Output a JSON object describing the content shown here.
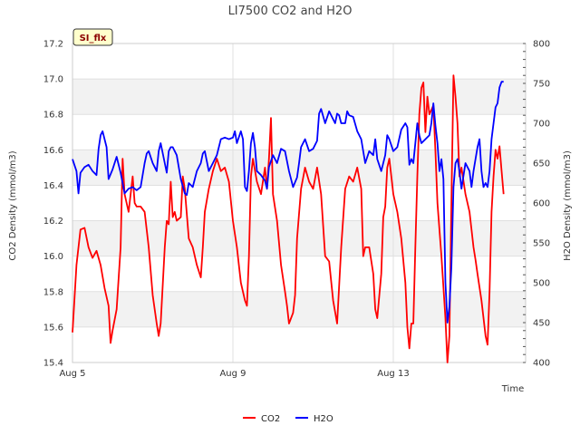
{
  "badge": "SI_flx",
  "chart_data": {
    "type": "line",
    "title": "LI7500 CO2 and H2O",
    "xlabel": "Time",
    "ylabel_left": "CO2 Density (mmol/m3)",
    "ylabel_right": "H2O Density (mmol/m3)",
    "x_range_days": [
      5,
      16.3
    ],
    "x_ticks": [
      {
        "day": 5,
        "label": "Aug 5"
      },
      {
        "day": 9,
        "label": "Aug 9"
      },
      {
        "day": 13,
        "label": "Aug 13"
      }
    ],
    "ylim_left": [
      15.4,
      17.2
    ],
    "yticks_left": [
      "15.4",
      "15.6",
      "15.8",
      "16.0",
      "16.2",
      "16.4",
      "16.6",
      "16.8",
      "17.0",
      "17.2"
    ],
    "ylim_right": [
      400,
      800
    ],
    "yticks_right": [
      "400",
      "450",
      "500",
      "550",
      "600",
      "650",
      "700",
      "750",
      "800"
    ],
    "band_color": "#f2f2f2",
    "series": [
      {
        "name": "CO2",
        "axis": "left",
        "color": "#ff0000",
        "points": [
          [
            5.0,
            15.57
          ],
          [
            5.1,
            15.95
          ],
          [
            5.2,
            16.15
          ],
          [
            5.3,
            16.16
          ],
          [
            5.4,
            16.05
          ],
          [
            5.5,
            15.99
          ],
          [
            5.6,
            16.03
          ],
          [
            5.7,
            15.95
          ],
          [
            5.8,
            15.82
          ],
          [
            5.9,
            15.72
          ],
          [
            5.95,
            15.51
          ],
          [
            6.0,
            15.58
          ],
          [
            6.1,
            15.7
          ],
          [
            6.2,
            16.05
          ],
          [
            6.25,
            16.55
          ],
          [
            6.3,
            16.35
          ],
          [
            6.4,
            16.25
          ],
          [
            6.5,
            16.45
          ],
          [
            6.55,
            16.3
          ],
          [
            6.6,
            16.28
          ],
          [
            6.7,
            16.28
          ],
          [
            6.8,
            16.25
          ],
          [
            6.9,
            16.05
          ],
          [
            7.0,
            15.78
          ],
          [
            7.1,
            15.62
          ],
          [
            7.15,
            15.55
          ],
          [
            7.2,
            15.62
          ],
          [
            7.3,
            16.05
          ],
          [
            7.35,
            16.2
          ],
          [
            7.4,
            16.18
          ],
          [
            7.45,
            16.42
          ],
          [
            7.5,
            16.22
          ],
          [
            7.55,
            16.25
          ],
          [
            7.6,
            16.2
          ],
          [
            7.7,
            16.22
          ],
          [
            7.75,
            16.45
          ],
          [
            7.8,
            16.38
          ],
          [
            7.9,
            16.1
          ],
          [
            8.0,
            16.05
          ],
          [
            8.1,
            15.95
          ],
          [
            8.2,
            15.88
          ],
          [
            8.25,
            16.05
          ],
          [
            8.3,
            16.25
          ],
          [
            8.4,
            16.38
          ],
          [
            8.5,
            16.48
          ],
          [
            8.6,
            16.55
          ],
          [
            8.7,
            16.48
          ],
          [
            8.8,
            16.5
          ],
          [
            8.9,
            16.42
          ],
          [
            9.0,
            16.2
          ],
          [
            9.1,
            16.05
          ],
          [
            9.2,
            15.85
          ],
          [
            9.3,
            15.75
          ],
          [
            9.35,
            15.72
          ],
          [
            9.4,
            16.0
          ],
          [
            9.45,
            16.45
          ],
          [
            9.5,
            16.55
          ],
          [
            9.6,
            16.42
          ],
          [
            9.7,
            16.35
          ],
          [
            9.8,
            16.5
          ],
          [
            9.85,
            16.38
          ],
          [
            9.9,
            16.55
          ],
          [
            9.95,
            16.78
          ],
          [
            10.0,
            16.35
          ],
          [
            10.1,
            16.2
          ],
          [
            10.2,
            15.95
          ],
          [
            10.3,
            15.8
          ],
          [
            10.35,
            15.72
          ],
          [
            10.4,
            15.62
          ],
          [
            10.5,
            15.68
          ],
          [
            10.55,
            15.78
          ],
          [
            10.6,
            16.1
          ],
          [
            10.7,
            16.38
          ],
          [
            10.8,
            16.5
          ],
          [
            10.9,
            16.42
          ],
          [
            11.0,
            16.38
          ],
          [
            11.1,
            16.5
          ],
          [
            11.2,
            16.35
          ],
          [
            11.3,
            16.0
          ],
          [
            11.4,
            15.97
          ],
          [
            11.5,
            15.75
          ],
          [
            11.6,
            15.62
          ],
          [
            11.7,
            16.05
          ],
          [
            11.8,
            16.38
          ],
          [
            11.9,
            16.45
          ],
          [
            12.0,
            16.42
          ],
          [
            12.1,
            16.5
          ],
          [
            12.2,
            16.38
          ],
          [
            12.25,
            16.0
          ],
          [
            12.3,
            16.05
          ],
          [
            12.4,
            16.05
          ],
          [
            12.5,
            15.9
          ],
          [
            12.55,
            15.7
          ],
          [
            12.6,
            15.65
          ],
          [
            12.7,
            15.9
          ],
          [
            12.75,
            16.22
          ],
          [
            12.8,
            16.28
          ],
          [
            12.85,
            16.5
          ],
          [
            12.9,
            16.55
          ],
          [
            13.0,
            16.35
          ],
          [
            13.1,
            16.25
          ],
          [
            13.2,
            16.1
          ],
          [
            13.3,
            15.85
          ],
          [
            13.35,
            15.6
          ],
          [
            13.4,
            15.48
          ],
          [
            13.45,
            15.62
          ],
          [
            13.5,
            15.62
          ],
          [
            13.55,
            16.05
          ],
          [
            13.6,
            16.45
          ],
          [
            13.65,
            16.8
          ],
          [
            13.7,
            16.95
          ],
          [
            13.75,
            16.98
          ],
          [
            13.8,
            16.7
          ],
          [
            13.85,
            16.9
          ],
          [
            13.9,
            16.8
          ],
          [
            14.0,
            16.85
          ],
          [
            14.05,
            16.6
          ],
          [
            14.1,
            16.3
          ],
          [
            14.2,
            16.0
          ],
          [
            14.3,
            15.65
          ],
          [
            14.35,
            15.4
          ],
          [
            14.4,
            15.55
          ],
          [
            14.45,
            16.3
          ],
          [
            14.5,
            17.02
          ],
          [
            14.55,
            16.9
          ],
          [
            14.6,
            16.75
          ],
          [
            14.65,
            16.45
          ],
          [
            14.7,
            16.5
          ],
          [
            14.8,
            16.35
          ],
          [
            14.9,
            16.25
          ],
          [
            15.0,
            16.05
          ],
          [
            15.05,
            15.98
          ],
          [
            15.1,
            15.9
          ],
          [
            15.2,
            15.75
          ],
          [
            15.3,
            15.55
          ],
          [
            15.35,
            15.5
          ],
          [
            15.4,
            15.8
          ],
          [
            15.45,
            16.25
          ],
          [
            15.5,
            16.45
          ],
          [
            15.55,
            16.6
          ],
          [
            15.6,
            16.55
          ],
          [
            15.65,
            16.62
          ],
          [
            15.7,
            16.48
          ],
          [
            15.75,
            16.35
          ]
        ]
      },
      {
        "name": "H2O",
        "axis": "right",
        "color": "#0000ff",
        "points": [
          [
            5.0,
            655
          ],
          [
            5.1,
            640
          ],
          [
            5.15,
            612
          ],
          [
            5.2,
            638
          ],
          [
            5.3,
            645
          ],
          [
            5.4,
            648
          ],
          [
            5.5,
            640
          ],
          [
            5.6,
            635
          ],
          [
            5.65,
            668
          ],
          [
            5.7,
            685
          ],
          [
            5.75,
            690
          ],
          [
            5.8,
            680
          ],
          [
            5.85,
            670
          ],
          [
            5.9,
            630
          ],
          [
            6.0,
            642
          ],
          [
            6.1,
            658
          ],
          [
            6.2,
            638
          ],
          [
            6.3,
            612
          ],
          [
            6.4,
            618
          ],
          [
            6.5,
            620
          ],
          [
            6.6,
            616
          ],
          [
            6.7,
            620
          ],
          [
            6.8,
            650
          ],
          [
            6.85,
            662
          ],
          [
            6.9,
            665
          ],
          [
            7.0,
            650
          ],
          [
            7.1,
            640
          ],
          [
            7.15,
            665
          ],
          [
            7.2,
            675
          ],
          [
            7.3,
            650
          ],
          [
            7.35,
            638
          ],
          [
            7.4,
            665
          ],
          [
            7.45,
            670
          ],
          [
            7.5,
            670
          ],
          [
            7.6,
            660
          ],
          [
            7.7,
            630
          ],
          [
            7.8,
            612
          ],
          [
            7.85,
            610
          ],
          [
            7.9,
            625
          ],
          [
            8.0,
            620
          ],
          [
            8.1,
            640
          ],
          [
            8.2,
            650
          ],
          [
            8.25,
            662
          ],
          [
            8.3,
            665
          ],
          [
            8.4,
            640
          ],
          [
            8.5,
            650
          ],
          [
            8.6,
            660
          ],
          [
            8.7,
            680
          ],
          [
            8.8,
            682
          ],
          [
            8.9,
            680
          ],
          [
            9.0,
            682
          ],
          [
            9.05,
            690
          ],
          [
            9.1,
            675
          ],
          [
            9.2,
            690
          ],
          [
            9.25,
            680
          ],
          [
            9.3,
            620
          ],
          [
            9.35,
            615
          ],
          [
            9.4,
            640
          ],
          [
            9.45,
            675
          ],
          [
            9.5,
            688
          ],
          [
            9.55,
            670
          ],
          [
            9.6,
            640
          ],
          [
            9.7,
            635
          ],
          [
            9.8,
            628
          ],
          [
            9.85,
            618
          ],
          [
            9.9,
            645
          ],
          [
            10.0,
            660
          ],
          [
            10.1,
            650
          ],
          [
            10.2,
            668
          ],
          [
            10.3,
            665
          ],
          [
            10.4,
            640
          ],
          [
            10.5,
            620
          ],
          [
            10.6,
            632
          ],
          [
            10.65,
            650
          ],
          [
            10.7,
            670
          ],
          [
            10.8,
            680
          ],
          [
            10.9,
            665
          ],
          [
            11.0,
            668
          ],
          [
            11.1,
            678
          ],
          [
            11.15,
            712
          ],
          [
            11.2,
            718
          ],
          [
            11.3,
            700
          ],
          [
            11.4,
            715
          ],
          [
            11.5,
            705
          ],
          [
            11.55,
            700
          ],
          [
            11.6,
            712
          ],
          [
            11.65,
            710
          ],
          [
            11.7,
            700
          ],
          [
            11.8,
            700
          ],
          [
            11.85,
            715
          ],
          [
            11.9,
            710
          ],
          [
            12.0,
            708
          ],
          [
            12.1,
            690
          ],
          [
            12.2,
            680
          ],
          [
            12.3,
            650
          ],
          [
            12.4,
            665
          ],
          [
            12.5,
            660
          ],
          [
            12.55,
            680
          ],
          [
            12.6,
            655
          ],
          [
            12.7,
            640
          ],
          [
            12.8,
            660
          ],
          [
            12.85,
            685
          ],
          [
            12.9,
            680
          ],
          [
            13.0,
            665
          ],
          [
            13.1,
            670
          ],
          [
            13.2,
            692
          ],
          [
            13.3,
            700
          ],
          [
            13.35,
            695
          ],
          [
            13.4,
            648
          ],
          [
            13.45,
            655
          ],
          [
            13.5,
            650
          ],
          [
            13.6,
            700
          ],
          [
            13.65,
            685
          ],
          [
            13.7,
            675
          ],
          [
            13.8,
            680
          ],
          [
            13.9,
            685
          ],
          [
            13.95,
            700
          ],
          [
            14.0,
            725
          ],
          [
            14.05,
            698
          ],
          [
            14.1,
            675
          ],
          [
            14.15,
            640
          ],
          [
            14.2,
            655
          ],
          [
            14.25,
            630
          ],
          [
            14.3,
            500
          ],
          [
            14.35,
            450
          ],
          [
            14.4,
            470
          ],
          [
            14.45,
            520
          ],
          [
            14.5,
            620
          ],
          [
            14.55,
            650
          ],
          [
            14.6,
            655
          ],
          [
            14.65,
            640
          ],
          [
            14.7,
            618
          ],
          [
            14.8,
            650
          ],
          [
            14.9,
            640
          ],
          [
            14.95,
            620
          ],
          [
            15.0,
            640
          ],
          [
            15.1,
            670
          ],
          [
            15.15,
            680
          ],
          [
            15.2,
            640
          ],
          [
            15.25,
            620
          ],
          [
            15.3,
            625
          ],
          [
            15.35,
            620
          ],
          [
            15.4,
            640
          ],
          [
            15.45,
            680
          ],
          [
            15.5,
            700
          ],
          [
            15.55,
            720
          ],
          [
            15.6,
            725
          ],
          [
            15.65,
            745
          ],
          [
            15.7,
            752
          ],
          [
            15.75,
            752
          ]
        ]
      }
    ],
    "legend": [
      {
        "name": "CO2",
        "color": "#ff0000"
      },
      {
        "name": "H2O",
        "color": "#0000ff"
      }
    ]
  }
}
